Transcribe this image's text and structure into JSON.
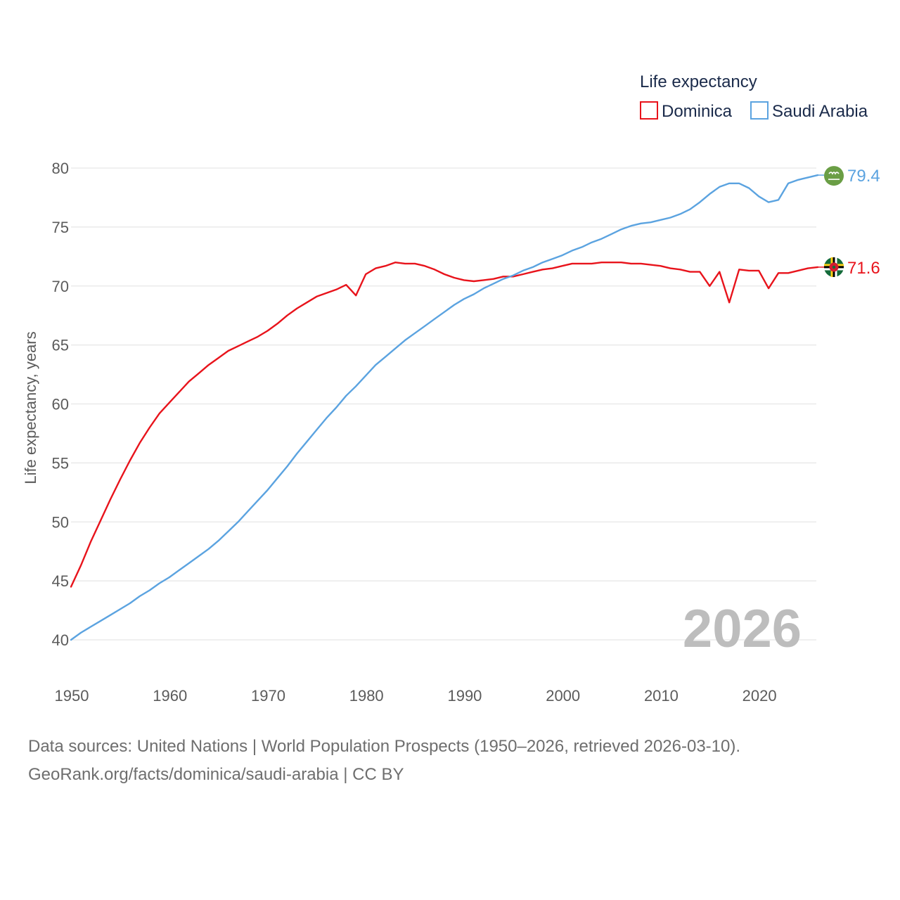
{
  "chart_data": {
    "type": "line",
    "legend_title": "Life expectancy",
    "ylabel": "Life expectancy, years",
    "xlabel": "",
    "xlim": [
      1950,
      2026
    ],
    "ylim": [
      40,
      80
    ],
    "xticks": [
      1950,
      1960,
      1970,
      1980,
      1990,
      2000,
      2010,
      2020
    ],
    "yticks": [
      40,
      45,
      50,
      55,
      60,
      65,
      70,
      75,
      80
    ],
    "watermark_year": "2026",
    "series": [
      {
        "name": "Dominica",
        "color": "#e8131b",
        "end_label": "71.6",
        "flag_icon": "dominica-flag-icon",
        "x": [
          1950,
          1951,
          1952,
          1953,
          1954,
          1955,
          1956,
          1957,
          1958,
          1959,
          1960,
          1961,
          1962,
          1963,
          1964,
          1965,
          1966,
          1967,
          1968,
          1969,
          1970,
          1971,
          1972,
          1973,
          1974,
          1975,
          1976,
          1977,
          1978,
          1979,
          1980,
          1981,
          1982,
          1983,
          1984,
          1985,
          1986,
          1987,
          1988,
          1989,
          1990,
          1991,
          1992,
          1993,
          1994,
          1995,
          1996,
          1997,
          1998,
          1999,
          2000,
          2001,
          2002,
          2003,
          2004,
          2005,
          2006,
          2007,
          2008,
          2009,
          2010,
          2011,
          2012,
          2013,
          2014,
          2015,
          2016,
          2017,
          2018,
          2019,
          2020,
          2021,
          2022,
          2023,
          2024,
          2025,
          2026
        ],
        "values": [
          44.5,
          46.3,
          48.3,
          50.1,
          51.9,
          53.6,
          55.2,
          56.7,
          58.0,
          59.2,
          60.1,
          61.0,
          61.9,
          62.6,
          63.3,
          63.9,
          64.5,
          64.9,
          65.3,
          65.7,
          66.2,
          66.8,
          67.5,
          68.1,
          68.6,
          69.1,
          69.4,
          69.7,
          70.1,
          69.2,
          71.0,
          71.5,
          71.7,
          72.0,
          71.9,
          71.9,
          71.7,
          71.4,
          71.0,
          70.7,
          70.5,
          70.4,
          70.5,
          70.6,
          70.8,
          70.8,
          71.0,
          71.2,
          71.4,
          71.5,
          71.7,
          71.9,
          71.9,
          71.9,
          72.0,
          72.0,
          72.0,
          71.9,
          71.9,
          71.8,
          71.7,
          71.5,
          71.4,
          71.2,
          71.2,
          70.0,
          71.2,
          68.6,
          71.4,
          71.3,
          71.3,
          69.8,
          71.1,
          71.1,
          71.3,
          71.5,
          71.6
        ]
      },
      {
        "name": "Saudi Arabia",
        "color": "#5ba3e0",
        "end_label": "79.4",
        "flag_icon": "saudi-arabia-flag-icon",
        "x": [
          1950,
          1951,
          1952,
          1953,
          1954,
          1955,
          1956,
          1957,
          1958,
          1959,
          1960,
          1961,
          1962,
          1963,
          1964,
          1965,
          1966,
          1967,
          1968,
          1969,
          1970,
          1971,
          1972,
          1973,
          1974,
          1975,
          1976,
          1977,
          1978,
          1979,
          1980,
          1981,
          1982,
          1983,
          1984,
          1985,
          1986,
          1987,
          1988,
          1989,
          1990,
          1991,
          1992,
          1993,
          1994,
          1995,
          1996,
          1997,
          1998,
          1999,
          2000,
          2001,
          2002,
          2003,
          2004,
          2005,
          2006,
          2007,
          2008,
          2009,
          2010,
          2011,
          2012,
          2013,
          2014,
          2015,
          2016,
          2017,
          2018,
          2019,
          2020,
          2021,
          2022,
          2023,
          2024,
          2025,
          2026
        ],
        "values": [
          40.0,
          40.6,
          41.1,
          41.6,
          42.1,
          42.6,
          43.1,
          43.7,
          44.2,
          44.8,
          45.3,
          45.9,
          46.5,
          47.1,
          47.7,
          48.4,
          49.2,
          50.0,
          50.9,
          51.8,
          52.7,
          53.7,
          54.7,
          55.8,
          56.8,
          57.8,
          58.8,
          59.7,
          60.7,
          61.5,
          62.4,
          63.3,
          64.0,
          64.7,
          65.4,
          66.0,
          66.6,
          67.2,
          67.8,
          68.4,
          68.9,
          69.3,
          69.8,
          70.2,
          70.6,
          70.9,
          71.3,
          71.6,
          72.0,
          72.3,
          72.6,
          73.0,
          73.3,
          73.7,
          74.0,
          74.4,
          74.8,
          75.1,
          75.3,
          75.4,
          75.6,
          75.8,
          76.1,
          76.5,
          77.1,
          77.8,
          78.4,
          78.7,
          78.7,
          78.3,
          77.6,
          77.1,
          77.3,
          78.7,
          79.0,
          79.2,
          79.4
        ]
      }
    ]
  },
  "footer": {
    "line1": "Data sources: United Nations | World Population Prospects (1950–2026, retrieved 2026-03-10).",
    "line2": "GeoRank.org/facts/dominica/saudi-arabia | CC BY"
  }
}
